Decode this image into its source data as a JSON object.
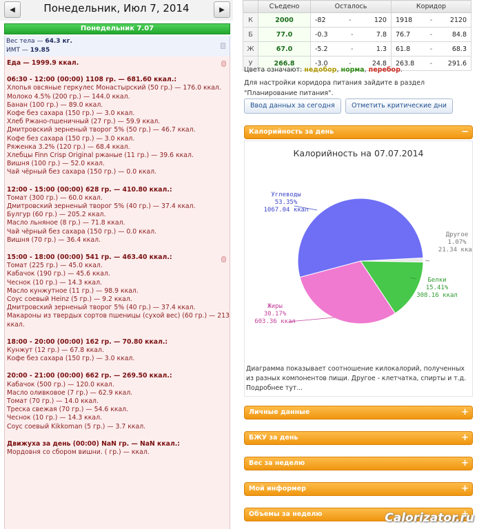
{
  "header": {
    "date_title": "Понедельник, Июл 7, 2014",
    "prev_label": "◀",
    "next_label": "▶"
  },
  "day_bar": "Понедельник 7.07",
  "body": {
    "weight_label": "Вес тела",
    "weight_value": "64.3 кг.",
    "bmi_label": "ИМТ",
    "bmi_value": "19.85"
  },
  "food_log": {
    "total_label": "Еда",
    "total_value": "1999.9 ккал.",
    "meals": [
      {
        "header": "06:30 - 12:00 (00:00) 1108 гр. — 681.60 ккал.:",
        "items": [
          "Хлопья овсяные геркулес Монастырский (50 гр.) — 176.0 ккал.",
          "Молоко 4.5% (200 гр.) — 144.0 ккал.",
          "Банан (100 гр.) — 89.0 ккал.",
          "Кофе без сахара (150 гр.) — 3.0 ккал.",
          "Хлеб Ржано-пшеничный (27 гр.) — 59.9 ккал.",
          "Дмитровский зерненый творог 5% (50 гр.) — 46.7 ккал.",
          "Кофе без сахара (150 гр.) — 3.0 ккал.",
          "Ряженка 3.2% (120 гр.) — 68.4 ккал.",
          "Хлебцы Finn Crisp Original ржаные (11 гр.) — 39.6 ккал.",
          "Вишня (100 гр.) — 52.0 ккал.",
          "Чай чёрный без сахара (150 гр.) — 0.0 ккал."
        ]
      },
      {
        "header": "12:00 - 15:00 (00:00) 628 гр. — 410.80 ккал.:",
        "items": [
          "Томат (300 гр.) — 60.0 ккал.",
          "Дмитровский зерненый творог 5% (40 гр.) — 37.4 ккал.",
          "Булгур (60 гр.) — 205.2 ккал.",
          "Масло льняное (8 гр.) — 71.8 ккал.",
          "Чай чёрный без сахара (150 гр.) — 0.0 ккал.",
          "Вишня (70 гр.) — 36.4 ккал."
        ]
      },
      {
        "header": "15:00 - 18:00 (00:00) 541 гр. — 463.40 ккал.:",
        "items": [
          "Томат (225 гр.) — 45.0 ккал.",
          "Кабачок (190 гр.) — 45.6 ккал.",
          "Чеснок (10 гр.) — 14.3 ккал.",
          "Масло кунжутное (11 гр.) — 98.9 ккал.",
          "Соус соевый Heinz (5 гр.) — 9.2 ккал.",
          "Дмитровский зерненый творог 5% (40 гр.) — 37.4 ккал.",
          "Макароны из твердых сортов пшеницы (сухой вес) (60 гр.) — 213.0",
          "ккал."
        ]
      },
      {
        "header": "18:00 - 20:00 (00:00) 162 гр. — 70.80 ккал.:",
        "items": [
          "Кунжут (12 гр.) — 67.8 ккал.",
          "Кофе без сахара (150 гр.) — 3.0 ккал."
        ]
      },
      {
        "header": "20:00 - 21:00 (00:00) 662 гр. — 269.50 ккал.:",
        "items": [
          "Кабачок (500 гр.) — 120.0 ккал.",
          "Масло оливковое (7 гр.) — 62.9 ккал.",
          "Томат (70 гр.) — 14.0 ккал.",
          "Треска свежая (70 гр.) — 54.6 ккал.",
          "Чеснок (10 гр.) — 14.3 ккал.",
          "Соус соевый Kikkoman (5 гр.) — 3.7 ккал."
        ]
      }
    ],
    "activity_header": "Движуха за день (00:00) NaN гр. — NaN ккал.:",
    "activity_item": "Мордовня со сбором вишни. ( гр.) — ккал."
  },
  "summary_table": {
    "headers": [
      "",
      "Съедено",
      "Осталось",
      "Коридор"
    ],
    "rows": [
      {
        "label": "К",
        "eaten": "2000",
        "left_from": "-82",
        "left_to": "120",
        "corr_from": "1918",
        "corr_to": "2120"
      },
      {
        "label": "Б",
        "eaten": "77.0",
        "left_from": "-0.3",
        "left_to": "7.8",
        "corr_from": "76.7",
        "corr_to": "84.8"
      },
      {
        "label": "Ж",
        "eaten": "67.0",
        "left_from": "-5.2",
        "left_to": "1.3",
        "corr_from": "61.8",
        "corr_to": "68.3"
      },
      {
        "label": "У",
        "eaten": "266.8",
        "left_from": "-3.0",
        "left_to": "24.8",
        "corr_from": "263.8",
        "corr_to": "291.6"
      }
    ],
    "dash": "-"
  },
  "legend": {
    "prefix": "Цвета означают:",
    "under": "недобор",
    "norm": "норма",
    "over": "перебор",
    "sep": ",",
    "end": ".",
    "under_color": "#b29b00",
    "norm_color": "#2d8a12",
    "over_color": "#c9281d"
  },
  "settings_note": "Для настройки коридора питания зайдите в раздел \"Планирование питания\".",
  "buttons": {
    "input_today": "Ввод данных за сегодня",
    "mark_critical": "Отметить критические дни"
  },
  "panels": {
    "calories_day": "Калорийность за день",
    "collapse_sign": "−",
    "expand_sign": "+",
    "personal": "Личные данные",
    "bju_day": "БЖУ за день",
    "weight_week": "Вес за неделю",
    "informer": "Мой информер",
    "volumes_week": "Объемы за неделю"
  },
  "chart_data": {
    "type": "pie",
    "title": "Калорийность на 07.07.2014",
    "slices": [
      {
        "name": "Углеводы",
        "percent": 53.35,
        "label_pct": "53.35%",
        "label_kcal": "1067.04 ккал",
        "color": "#6e6ff5",
        "text_color": "#3d46c9"
      },
      {
        "name": "Другое",
        "percent": 1.07,
        "label_pct": "1.07%",
        "label_kcal": "21.34 ккал",
        "color": "#e8e8e8",
        "text_color": "#777777"
      },
      {
        "name": "Белки",
        "percent": 15.41,
        "label_pct": "15.41%",
        "label_kcal": "308.16 ккал",
        "color": "#47c84a",
        "text_color": "#2f9a2f"
      },
      {
        "name": "Жиры",
        "percent": 30.17,
        "label_pct": "30.17%",
        "label_kcal": "603.36 ккал",
        "color": "#f07ad0",
        "text_color": "#c1409a"
      }
    ]
  },
  "chart_description": "Диаграмма показывает соотношение килокалорий, полученных из разных компонентов пищи. Другое - клетчатка, спирты и т.д. Подробнее тут...",
  "watermark": "Calorizator.ru"
}
